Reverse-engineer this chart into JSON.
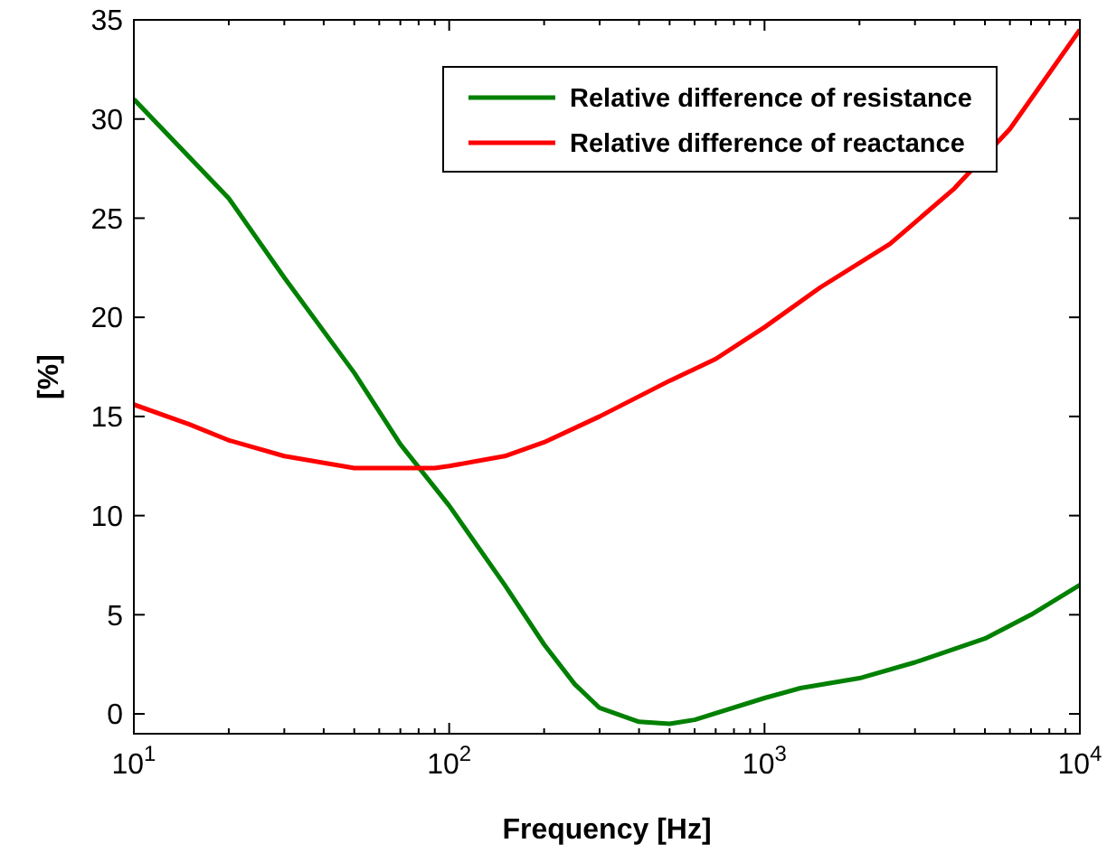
{
  "chart_data": {
    "type": "line",
    "xlabel": "Frequency [Hz]",
    "ylabel": "[%]",
    "log": "x",
    "xlim": [
      10,
      10000
    ],
    "ylim": [
      -1,
      35
    ],
    "xticks": [
      {
        "value": 10,
        "label": "10$^{1}$"
      },
      {
        "value": 100,
        "label": "10$^{2}$"
      },
      {
        "value": 1000,
        "label": "10$^{3}$"
      },
      {
        "value": 10000,
        "label": "10$^{4}$"
      }
    ],
    "yticks": [
      0,
      5,
      10,
      15,
      20,
      25,
      30,
      35
    ],
    "grid": false,
    "legend": "top right",
    "marker": "none",
    "line_style": "solid",
    "series": [
      {
        "name": "Relative difference of resistance",
        "color": "#008000",
        "x": [
          10,
          20,
          30,
          50,
          70,
          100,
          150,
          200,
          250,
          300,
          400,
          500,
          600,
          1000,
          1300,
          2000,
          3000,
          5000,
          7000,
          10000
        ],
        "values": [
          31,
          26,
          22,
          17.2,
          13.6,
          10.5,
          6.5,
          3.5,
          1.5,
          0.3,
          -0.4,
          -0.5,
          -0.3,
          0.8,
          1.3,
          1.8,
          2.6,
          3.8,
          5,
          6.5
        ]
      },
      {
        "name": "Relative difference of reactance",
        "color": "#ff0000",
        "x": [
          10,
          15,
          20,
          30,
          50,
          70,
          90,
          100,
          150,
          200,
          300,
          500,
          700,
          1000,
          1500,
          2500,
          4000,
          6000,
          10000
        ],
        "values": [
          15.6,
          14.6,
          13.8,
          13,
          12.4,
          12.4,
          12.4,
          12.5,
          13,
          13.7,
          15,
          16.8,
          17.9,
          19.5,
          21.5,
          23.7,
          26.5,
          29.5,
          34.5
        ]
      }
    ]
  }
}
